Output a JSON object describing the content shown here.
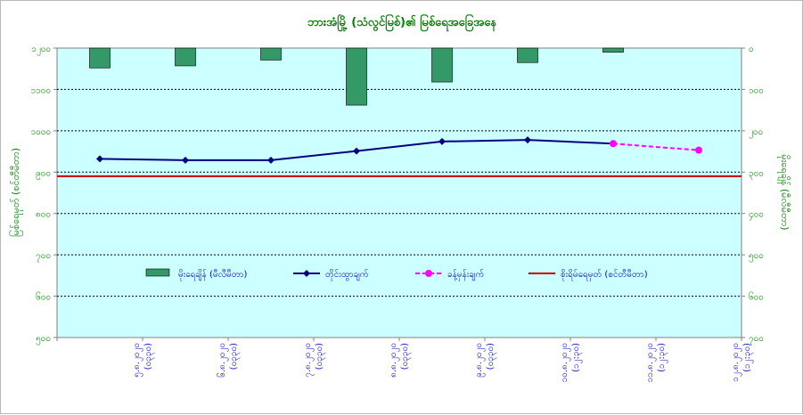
{
  "chart_data": {
    "type": "bar+line",
    "title": "ဘားအံမြို့ (သံလွင်မြစ်)၏ မြစ်ရေအခြေအနေ",
    "ylabel_left": "မြစ်ရေမှတ် (စင်တီမီတာ)",
    "ylabel_right": "မိုးရေချိန် (မီလီမီတာ)",
    "y_left": {
      "min": 500,
      "max": 1200,
      "ticks": [
        500,
        600,
        700,
        800,
        900,
        1000,
        1100,
        1200
      ]
    },
    "y_left_tick_labels": [
      "၅၀၀",
      "၆၀၀",
      "၇၀၀",
      "၈၀၀",
      "၉၀၀",
      "၁၀၀၀",
      "၁၁၀၀",
      "၁၂၀၀"
    ],
    "y_right": {
      "min": 0,
      "max": 700,
      "reversed": true,
      "ticks": [
        0,
        100,
        200,
        300,
        400,
        500,
        600,
        700
      ]
    },
    "y_right_tick_labels": [
      "၀",
      "၁၀၀",
      "၂၀၀",
      "၃၀၀",
      "၄၀၀",
      "၅၀၀",
      "၆၀၀",
      "၇၀၀"
    ],
    "categories": [
      [
        "၅.၈.၂၀၂၀",
        "(၀၃၃၀)"
      ],
      [
        "၆.၈.၂၀၂၀",
        "(၀၃၃၀)"
      ],
      [
        "၇.၈.၂၀၂၀",
        "(၀၃၃၀)"
      ],
      [
        "၈.၈.၂၀၂၀",
        "(၀၃၃၀)"
      ],
      [
        "၉.၈.၂၀၂၀",
        "(၀၃၃၀)"
      ],
      [
        "၁၀.၈.၂၀၂၀",
        "(၁၂:၃၀)"
      ],
      [
        "၁၁.၈.၂၀၂၀",
        "(၁၂:၃၀)"
      ],
      [
        "၁၂.၈.၂၀၂၀",
        "(၁၂:၃၀)"
      ]
    ],
    "series": [
      {
        "name": "မိုးရေချိန် (မီလီမီတာ)",
        "type": "bar",
        "axis": "right",
        "color": "#339966",
        "values": [
          48,
          43,
          29,
          138,
          82,
          35,
          10,
          null
        ]
      },
      {
        "name": "တိုင်းထွာချက်",
        "type": "line",
        "axis": "left",
        "color": "#000080",
        "marker": "diamond",
        "values": [
          932,
          929,
          929,
          951,
          974,
          978,
          969,
          null
        ]
      },
      {
        "name": "ခန့်မှန်းချက်",
        "type": "line",
        "axis": "left",
        "color": "#ff00ff",
        "dashed": true,
        "marker": "circle",
        "values": [
          null,
          null,
          null,
          null,
          null,
          null,
          969,
          953
        ]
      },
      {
        "name": "စိုးရိမ်ရေမှတ် (စင်တီမီတာ)",
        "type": "hline",
        "axis": "left",
        "color": "#cc0000",
        "value": 890
      }
    ],
    "legend_position": "inside-bottom",
    "grid": true,
    "plot_background": "#ccffff"
  }
}
